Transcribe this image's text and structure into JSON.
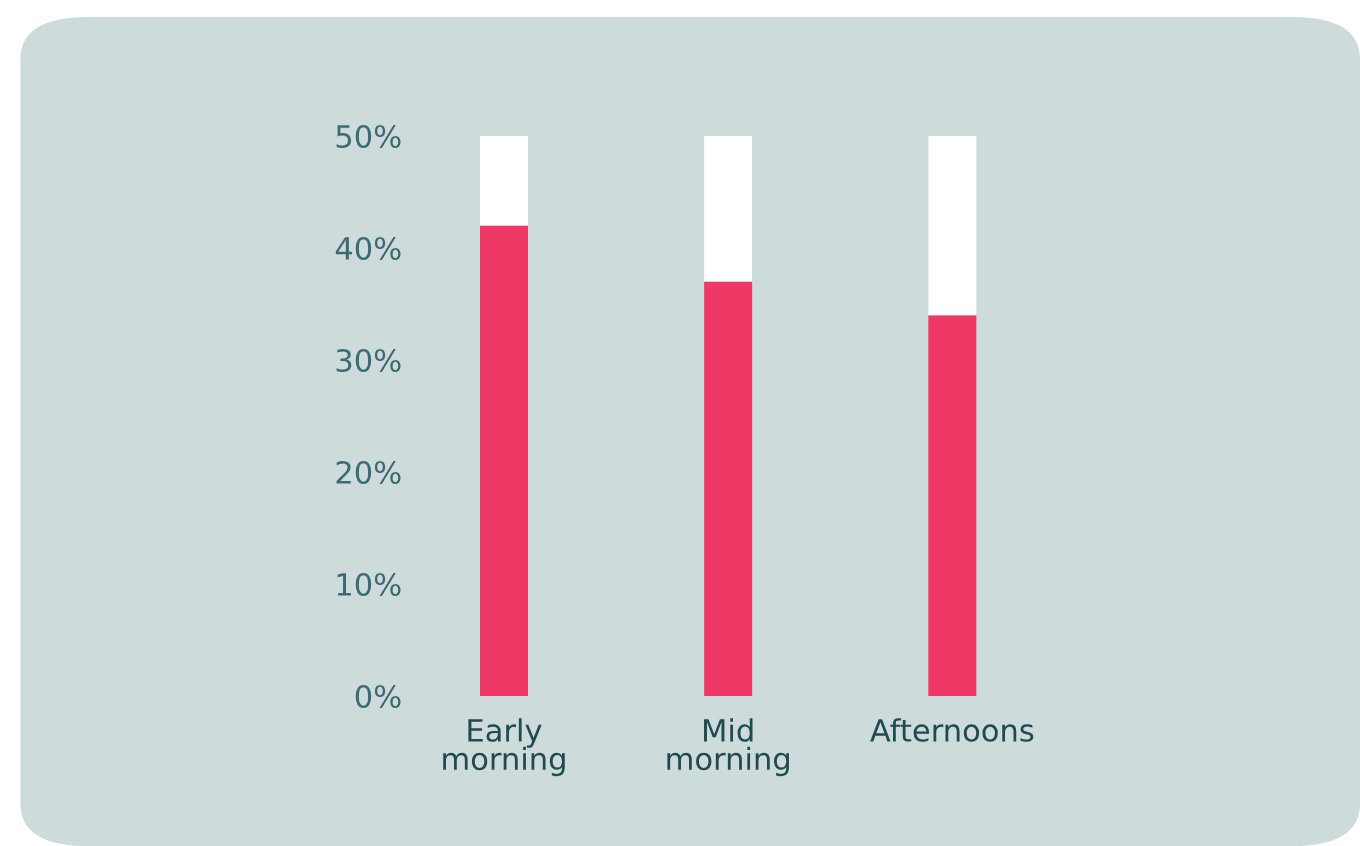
{
  "chart_data": {
    "type": "bar",
    "stacked": true,
    "categories": [
      "Early\nmorning",
      "Mid\nmorning",
      "Afternoons"
    ],
    "series": [
      {
        "color": "#ee3966",
        "values": [
          42,
          37,
          34
        ]
      },
      {
        "color": "#ffffff",
        "values": [
          8,
          13,
          16
        ]
      }
    ],
    "ylim": [
      0,
      50
    ],
    "yticks": [
      {
        "value": 0,
        "label": "0%"
      },
      {
        "value": 10,
        "label": "10%"
      },
      {
        "value": 20,
        "label": "20%"
      },
      {
        "value": 30,
        "label": "30%"
      },
      {
        "value": 40,
        "label": "40%"
      },
      {
        "value": 50,
        "label": "50%"
      }
    ],
    "grid": false,
    "legend": false
  }
}
